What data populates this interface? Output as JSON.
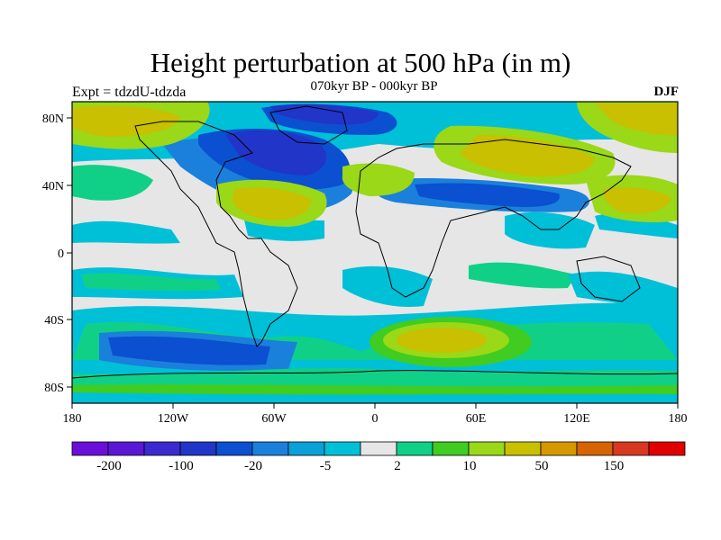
{
  "header": {
    "title": "Height perturbation at 500 hPa (in m)",
    "subtitle": "070kyr BP - 000kyr BP",
    "left_label": "Expt = tdzdU-tdzda",
    "right_label": "DJF"
  },
  "map": {
    "lat_labels": [
      "80N",
      "40N",
      "0",
      "40S",
      "80S"
    ],
    "lon_labels": [
      "180",
      "120W",
      "60W",
      "0",
      "60E",
      "120E",
      "180"
    ]
  },
  "colorbar": {
    "colors": [
      "#6a0fd8",
      "#5a18d6",
      "#3a2ad0",
      "#2135c8",
      "#0a50d0",
      "#1a80dc",
      "#0aa0d8",
      "#00c0d8",
      "#e6e6e6",
      "#10d088",
      "#40cc20",
      "#9ad818",
      "#c8c000",
      "#d69800",
      "#d66400",
      "#d83820",
      "#e00000"
    ],
    "labels": [
      "-200",
      "-100",
      "-20",
      "-5",
      "2",
      "10",
      "50",
      "150"
    ]
  }
}
